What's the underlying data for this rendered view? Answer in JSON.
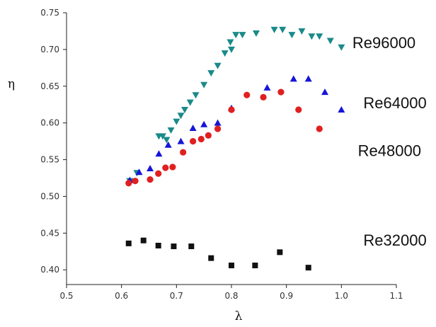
{
  "chart_data": {
    "type": "scatter",
    "title": "",
    "xlabel": "λ",
    "ylabel": "η",
    "xlim": [
      0.5,
      1.1
    ],
    "ylim": [
      0.38,
      0.75
    ],
    "xticks": [
      0.5,
      0.6,
      0.7,
      0.8,
      0.9,
      1.0,
      1.1
    ],
    "yticks": [
      0.4,
      0.45,
      0.5,
      0.55,
      0.6,
      0.65,
      0.7,
      0.75
    ],
    "xtick_labels": [
      "0.5",
      "0.6",
      "0.7",
      "0.8",
      "0.9",
      "1.0",
      "1.1"
    ],
    "ytick_labels": [
      "0.40",
      "0.45",
      "0.50",
      "0.55",
      "0.60",
      "0.65",
      "0.70",
      "0.75"
    ],
    "grid": false,
    "legend": "labels placed at right of each series",
    "series": [
      {
        "name": "Re96000",
        "marker": "triangle-down",
        "color": "#1a8a8a",
        "x": [
          0.615,
          0.628,
          0.668,
          0.675,
          0.682,
          0.69,
          0.7,
          0.708,
          0.715,
          0.725,
          0.735,
          0.75,
          0.763,
          0.775,
          0.788,
          0.798,
          0.8,
          0.808,
          0.82,
          0.845,
          0.878,
          0.893,
          0.91,
          0.928,
          0.946,
          0.96,
          0.98,
          1.0
        ],
        "y": [
          0.521,
          0.532,
          0.582,
          0.582,
          0.577,
          0.59,
          0.602,
          0.61,
          0.618,
          0.628,
          0.638,
          0.652,
          0.668,
          0.678,
          0.695,
          0.71,
          0.7,
          0.72,
          0.72,
          0.722,
          0.727,
          0.727,
          0.72,
          0.725,
          0.718,
          0.718,
          0.712,
          0.703
        ],
        "label_at": [
          1.02,
          0.702
        ]
      },
      {
        "name": "Re64000",
        "marker": "triangle-up",
        "color": "#1515d8",
        "x": [
          0.615,
          0.632,
          0.652,
          0.668,
          0.685,
          0.708,
          0.73,
          0.75,
          0.775,
          0.8,
          0.865,
          0.913,
          0.94,
          0.97,
          1.0
        ],
        "y": [
          0.522,
          0.533,
          0.538,
          0.558,
          0.57,
          0.575,
          0.593,
          0.598,
          0.6,
          0.62,
          0.648,
          0.66,
          0.66,
          0.642,
          0.618
        ],
        "label_at": [
          1.04,
          0.62
        ]
      },
      {
        "name": "Re48000",
        "marker": "circle",
        "color": "#e02020",
        "x": [
          0.613,
          0.625,
          0.652,
          0.667,
          0.68,
          0.693,
          0.712,
          0.73,
          0.745,
          0.758,
          0.775,
          0.8,
          0.828,
          0.858,
          0.89,
          0.922,
          0.96
        ],
        "y": [
          0.518,
          0.521,
          0.523,
          0.531,
          0.539,
          0.54,
          0.56,
          0.575,
          0.578,
          0.583,
          0.592,
          0.618,
          0.638,
          0.635,
          0.642,
          0.618,
          0.592
        ],
        "label_at": [
          1.03,
          0.555
        ]
      },
      {
        "name": "Re32000",
        "marker": "square",
        "color": "#111111",
        "x": [
          0.613,
          0.64,
          0.667,
          0.695,
          0.727,
          0.763,
          0.8,
          0.843,
          0.888,
          0.94
        ],
        "y": [
          0.436,
          0.44,
          0.433,
          0.432,
          0.432,
          0.416,
          0.406,
          0.406,
          0.424,
          0.403
        ],
        "label_at": [
          1.04,
          0.433
        ]
      }
    ]
  }
}
